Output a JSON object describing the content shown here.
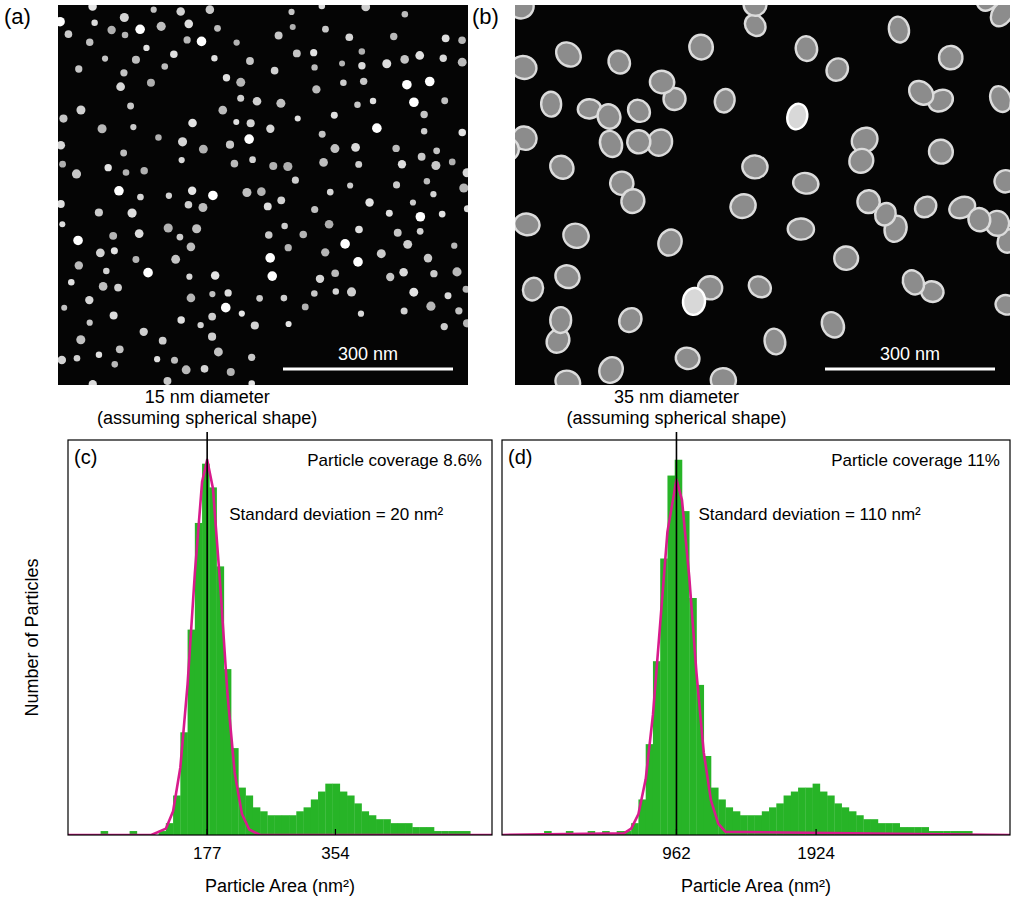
{
  "images": [
    {
      "label": "(a)",
      "scale_bar": "300 nm"
    },
    {
      "label": "(b)",
      "scale_bar": "300 nm"
    }
  ],
  "chart_data": [
    {
      "type": "histogram",
      "label": "(c)",
      "x_label": "Particle Area (nm²)",
      "y_label": "Number of Particles",
      "color": "#27b427",
      "xlim": [
        -15,
        570
      ],
      "xticks": [
        177,
        354
      ],
      "ylim": [
        0,
        100
      ],
      "yticks": [],
      "tick_labels": "x",
      "grid": false,
      "bins": [
        0,
        10,
        20,
        30,
        40,
        50,
        60,
        70,
        80,
        90,
        100,
        110,
        120,
        130,
        140,
        150,
        160,
        170,
        180,
        190,
        200,
        210,
        220,
        230,
        240,
        250,
        260,
        270,
        280,
        290,
        300,
        310,
        320,
        330,
        340,
        350,
        360,
        370,
        380,
        390,
        400,
        410,
        420,
        430,
        440,
        450,
        460,
        470,
        480,
        490,
        500,
        510,
        520,
        530,
        540,
        550,
        560,
        570
      ],
      "values": [
        0,
        0,
        0,
        1,
        0,
        0,
        0,
        1,
        0,
        0,
        0,
        1,
        3,
        10,
        26,
        52,
        79,
        94,
        88,
        68,
        42,
        22,
        12,
        10,
        7,
        6,
        5,
        5,
        5,
        5,
        6,
        7,
        9,
        11,
        13,
        13,
        11,
        10,
        8,
        6,
        5,
        4,
        4,
        3,
        3,
        3,
        2,
        2,
        2,
        1,
        1,
        1,
        1,
        1,
        0,
        0,
        0
      ],
      "fit": {
        "type": "line",
        "color": "#d81b8c",
        "x": [
          -15,
          100,
          120,
          130,
          140,
          150,
          160,
          170,
          177,
          185,
          195,
          205,
          215,
          225,
          235,
          250,
          570
        ],
        "values": [
          0,
          0,
          1.6,
          6,
          17.1,
          38.2,
          66.2,
          89.4,
          95,
          87.7,
          63.4,
          35.7,
          15.7,
          5.3,
          1.4,
          0,
          0
        ]
      },
      "annotation": {
        "x": 177,
        "lines": [
          "15 nm diameter",
          "(assuming spherical shape)"
        ]
      },
      "coverage": "Particle coverage 8.6%",
      "sd_label": "Standard deviation = 20 nm²"
    },
    {
      "type": "histogram",
      "label": "(d)",
      "x_label": "Particle Area (nm²)",
      "color": "#27b427",
      "xlim": [
        -240,
        3260
      ],
      "xticks": [
        962,
        1924
      ],
      "ylim": [
        0,
        100
      ],
      "yticks": [],
      "tick_labels": "x",
      "grid": false,
      "bins": [
        0,
        50,
        100,
        150,
        200,
        250,
        300,
        350,
        400,
        450,
        500,
        550,
        600,
        650,
        700,
        750,
        800,
        850,
        900,
        950,
        1000,
        1050,
        1100,
        1150,
        1200,
        1250,
        1300,
        1350,
        1400,
        1450,
        1500,
        1550,
        1600,
        1650,
        1700,
        1750,
        1800,
        1850,
        1900,
        1950,
        2000,
        2050,
        2100,
        2150,
        2200,
        2250,
        2300,
        2350,
        2400,
        2450,
        2500,
        2550,
        2600,
        2650,
        2700,
        2750,
        2800,
        2850,
        2900,
        2950,
        3000,
        3050,
        3100,
        3150,
        3200,
        3250
      ],
      "values": [
        0,
        1,
        0,
        0,
        1,
        0,
        0,
        1,
        0,
        1,
        0,
        1,
        1,
        3,
        9,
        23,
        44,
        70,
        91,
        95,
        82,
        60,
        38,
        20,
        12,
        9,
        7,
        6,
        5,
        5,
        5,
        6,
        7,
        8,
        10,
        11,
        12,
        12,
        13,
        11,
        10,
        8,
        7,
        6,
        5,
        4,
        4,
        3,
        3,
        3,
        2,
        2,
        2,
        2,
        1,
        1,
        1,
        1,
        1,
        1,
        0,
        0,
        0,
        0,
        0
      ],
      "fit": {
        "type": "line",
        "color": "#d81b8c",
        "x": [
          -240,
          600,
          650,
          700,
          750,
          800,
          850,
          900,
          962,
          1000,
          1050,
          1100,
          1150,
          1200,
          1250,
          1300,
          3260
        ],
        "values": [
          0,
          0.4,
          1.6,
          5.3,
          14.1,
          30.4,
          53.6,
          76.8,
          90,
          84.8,
          65.4,
          41,
          20.9,
          8.7,
          2.9,
          0.8,
          0
        ]
      },
      "annotation": {
        "x": 962,
        "lines": [
          "35 nm diameter",
          "(assuming spherical shape)"
        ]
      },
      "coverage": "Particle coverage 11%",
      "sd_label": "Standard deviation = 110 nm²"
    }
  ]
}
